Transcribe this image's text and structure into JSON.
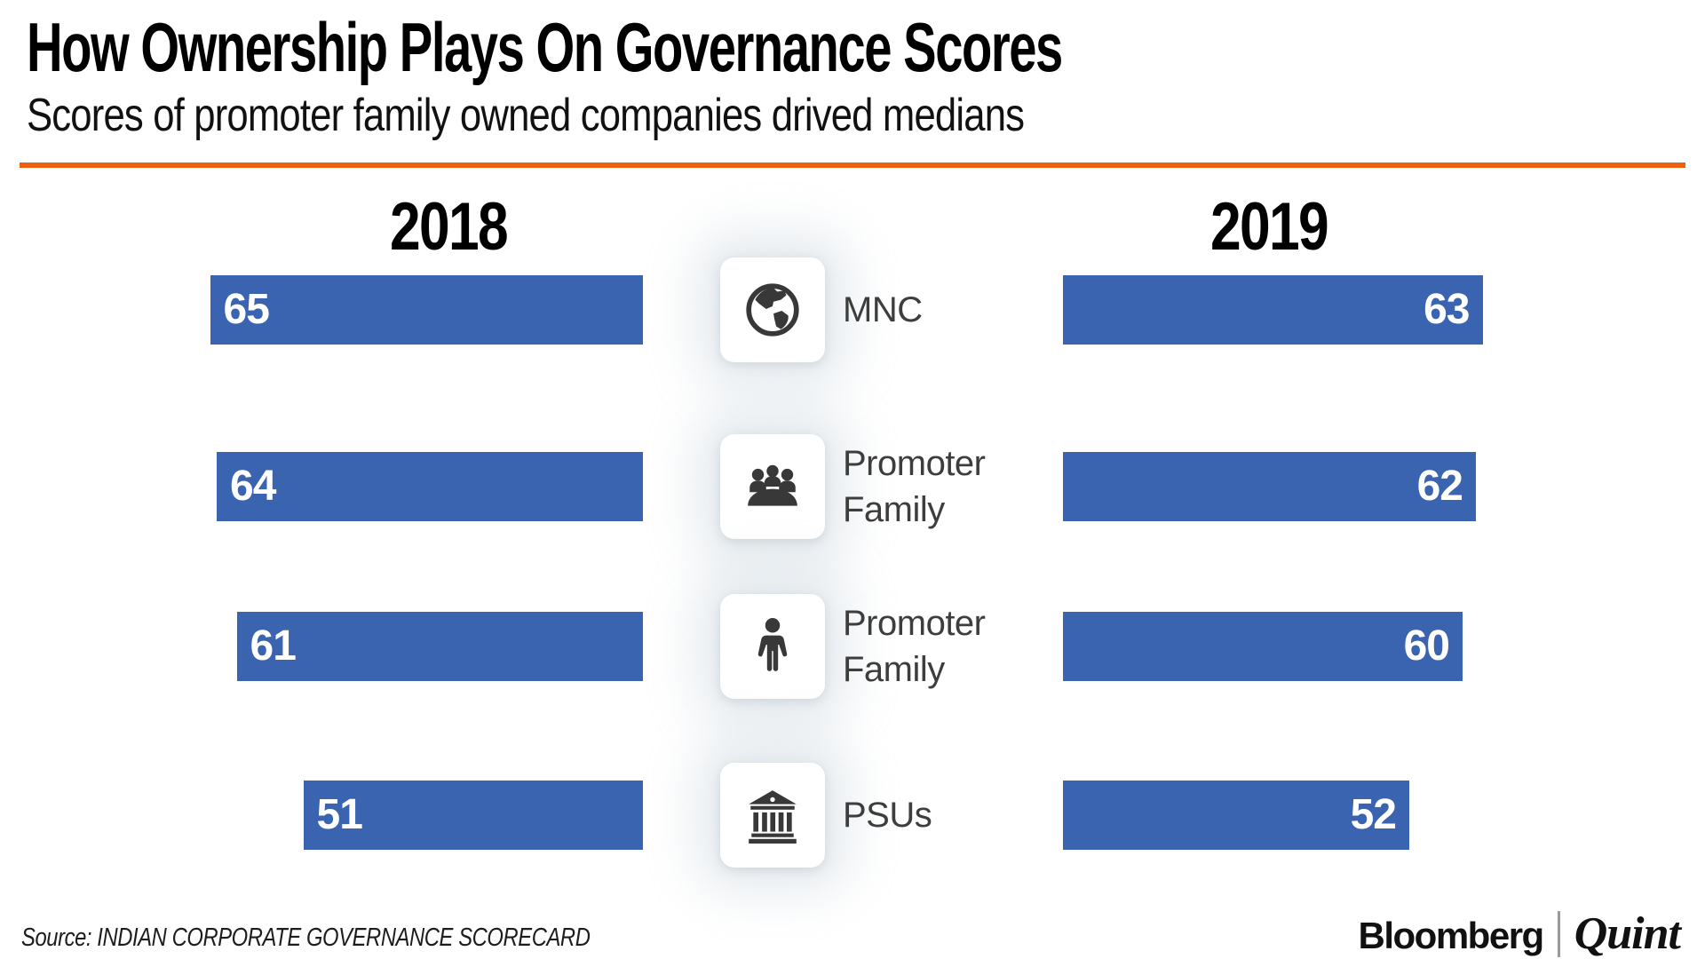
{
  "header": {
    "title": "How Ownership Plays On Governance Scores",
    "subtitle": "Scores of promoter family owned companies drived medians",
    "accent_color": "#EE600F"
  },
  "chart_data": {
    "type": "bar",
    "orientation": "horizontal",
    "title": "How Ownership Plays On Governance Scores",
    "subtitle": "Scores of promoter family owned companies drived medians",
    "column_headers": [
      "2018",
      "2019"
    ],
    "categories": [
      "MNC",
      "Promoter Family",
      "Promoter Family",
      "PSUs"
    ],
    "icon_names": [
      "globe-icon",
      "board-meeting-icon",
      "person-icon",
      "bank-icon"
    ],
    "series": [
      {
        "name": "2018",
        "values": [
          65,
          64,
          61,
          51
        ],
        "bar_alignment": "right",
        "value_label_position": "inside-left"
      },
      {
        "name": "2019",
        "values": [
          63,
          62,
          60,
          52
        ],
        "bar_alignment": "left",
        "value_label_position": "inside-right"
      }
    ],
    "xlim": [
      0,
      68
    ],
    "grid": false,
    "legend": false,
    "bar_color": "#3A63B0",
    "value_label_color": "#FFFFFF"
  },
  "footer": {
    "source_label": "Source: INDIAN CORPORATE GOVERNANCE SCORECARD",
    "brand_bloomberg": "Bloomberg",
    "brand_separator": "|",
    "brand_quint": "Quint"
  }
}
